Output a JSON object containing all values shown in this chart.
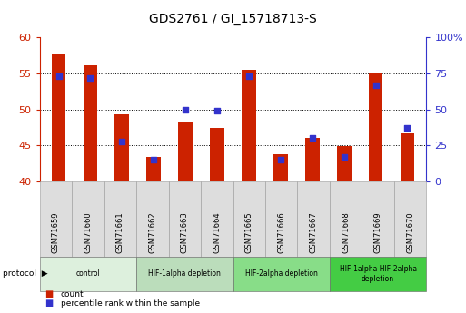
{
  "title": "GDS2761 / GI_15718713-S",
  "samples": [
    "GSM71659",
    "GSM71660",
    "GSM71661",
    "GSM71662",
    "GSM71663",
    "GSM71664",
    "GSM71665",
    "GSM71666",
    "GSM71667",
    "GSM71668",
    "GSM71669",
    "GSM71670"
  ],
  "bar_values": [
    57.8,
    56.1,
    49.4,
    43.4,
    48.3,
    47.5,
    55.5,
    43.8,
    46.1,
    44.9,
    55.0,
    46.7
  ],
  "dot_values": [
    73,
    72,
    28,
    15,
    50,
    49,
    73,
    15,
    30,
    17,
    67,
    37
  ],
  "ylim_left": [
    40,
    60
  ],
  "ylim_right": [
    0,
    100
  ],
  "yticks_left": [
    40,
    45,
    50,
    55,
    60
  ],
  "yticks_right": [
    0,
    25,
    50,
    75,
    100
  ],
  "ytick_labels_right": [
    "0",
    "25",
    "50",
    "75",
    "100%"
  ],
  "bar_color": "#cc2200",
  "dot_color": "#3333cc",
  "bar_bottom": 40,
  "grid_yticks": [
    45,
    50,
    55
  ],
  "protocol_groups": [
    {
      "label": "control",
      "start": 0,
      "end": 3,
      "color": "#ddf0dd"
    },
    {
      "label": "HIF-1alpha depletion",
      "start": 3,
      "end": 6,
      "color": "#bbddbb"
    },
    {
      "label": "HIF-2alpha depletion",
      "start": 6,
      "end": 9,
      "color": "#88dd88"
    },
    {
      "label": "HIF-1alpha HIF-2alpha\ndepletion",
      "start": 9,
      "end": 12,
      "color": "#44cc44"
    }
  ],
  "legend_items": [
    {
      "label": "count",
      "color": "#cc2200"
    },
    {
      "label": "percentile rank within the sample",
      "color": "#3333cc"
    }
  ],
  "protocol_label": "protocol",
  "axis_color_left": "#cc2200",
  "axis_color_right": "#3333cc",
  "sample_box_color": "#dddddd",
  "title_fontsize": 10,
  "bar_width": 0.45
}
